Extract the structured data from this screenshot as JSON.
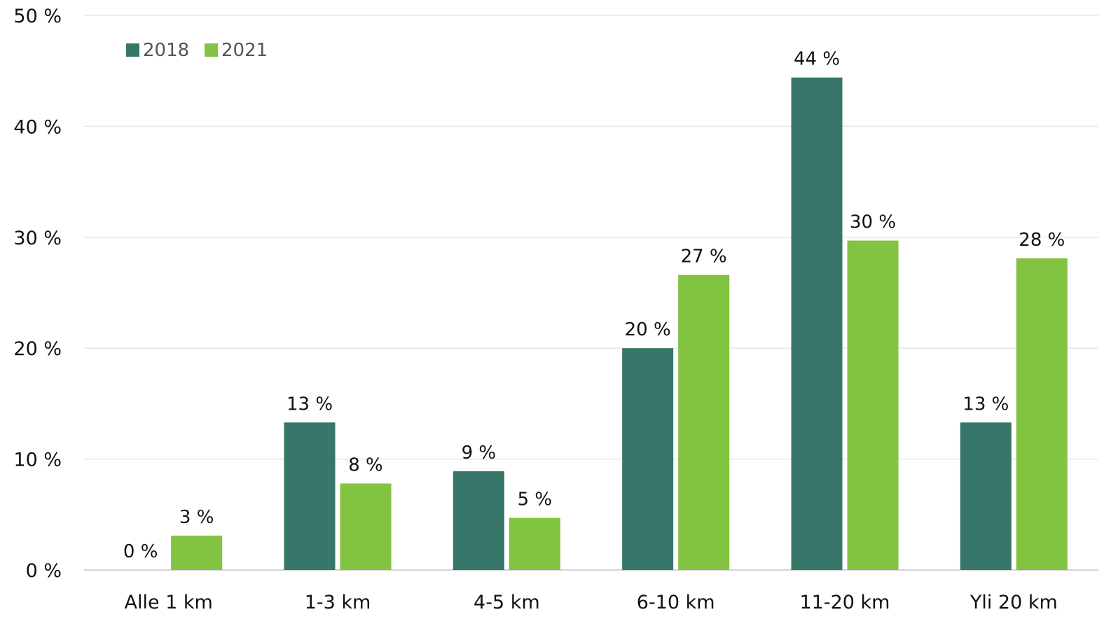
{
  "chart_data": {
    "type": "bar",
    "categories": [
      "Alle 1 km",
      "1-3 km",
      "4-5 km",
      "6-10 km",
      "11-20 km",
      "Yli 20 km"
    ],
    "series": [
      {
        "name": "2018",
        "color": "#36776a",
        "values": [
          0,
          13.3,
          8.9,
          20.0,
          44.4,
          13.3
        ],
        "labels": [
          "0 %",
          "13 %",
          "9 %",
          "20 %",
          "44 %",
          "13 %"
        ]
      },
      {
        "name": "2021",
        "color": "#82c341",
        "values": [
          3.1,
          7.8,
          4.7,
          26.6,
          29.7,
          28.1
        ],
        "labels": [
          "3 %",
          "8 %",
          "5 %",
          "27 %",
          "30 %",
          "28 %"
        ]
      }
    ],
    "ylim": [
      0,
      50
    ],
    "yticks": [
      0,
      10,
      20,
      30,
      40,
      50
    ],
    "ytick_labels": [
      "0 %",
      "10 %",
      "20 %",
      "30 %",
      "40 %",
      "50 %"
    ],
    "grid": true,
    "legend_position": "top-left"
  }
}
